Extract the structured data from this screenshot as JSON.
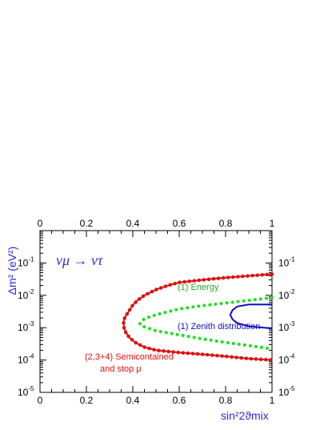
{
  "chart_data": {
    "type": "line",
    "title": "",
    "xlabel": "sin²2ϑmix",
    "ylabel": "Δm² (eV²)",
    "x_scale": "linear",
    "y_scale": "log",
    "xlim": [
      0,
      1
    ],
    "ylim": [
      1e-05,
      1
    ],
    "x_ticks": [
      "0",
      "0.2",
      "0.4",
      "0.6",
      "0.8",
      "1"
    ],
    "y_tick_exponents": [
      "-5",
      "-4",
      "-3",
      "-2",
      "-1"
    ],
    "y_tick_base": "10",
    "grid": false,
    "annotation_process": "νμ → ντ",
    "colors": {
      "energy": "#22dd22",
      "zenith": "#1010c0",
      "semicontained": "#e01010",
      "text_blue": "#2b2bd6"
    },
    "series": [
      {
        "name": "(2,3+4) Semicontained and stop μ",
        "label_lines": [
          "(2,3+4) Semicontained",
          "and stop μ"
        ],
        "style": "dotted-line",
        "x": [
          1.0,
          0.9,
          0.8,
          0.7,
          0.6,
          0.55,
          0.5,
          0.45,
          0.42,
          0.4,
          0.38,
          0.365,
          0.36,
          0.362,
          0.37,
          0.385,
          0.41,
          0.45,
          0.5,
          0.6,
          0.7,
          0.8,
          0.9,
          1.0
        ],
        "y": [
          0.045,
          0.04,
          0.035,
          0.03,
          0.025,
          0.02,
          0.015,
          0.01,
          0.007,
          0.005,
          0.003,
          0.002,
          0.0015,
          0.001,
          0.0007,
          0.0005,
          0.00035,
          0.00025,
          0.0002,
          0.00017,
          0.00015,
          0.00013,
          0.00011,
          0.0001
        ]
      },
      {
        "name": "(1) Energy",
        "style": "dots",
        "x": [
          1.0,
          0.9,
          0.8,
          0.7,
          0.6,
          0.5,
          0.45,
          0.43,
          0.45,
          0.5,
          0.6,
          0.7,
          0.8,
          0.9,
          1.0
        ],
        "y": [
          0.0085,
          0.007,
          0.0058,
          0.0048,
          0.0038,
          0.0025,
          0.0019,
          0.0013,
          0.00105,
          0.0008,
          0.0006,
          0.00045,
          0.00035,
          0.00028,
          0.00022
        ]
      },
      {
        "name": "(1) Zenith distribution",
        "style": "solid",
        "x": [
          1.0,
          0.9,
          0.85,
          0.83,
          0.82,
          0.83,
          0.85,
          0.9,
          1.0
        ],
        "y": [
          0.0052,
          0.0052,
          0.0045,
          0.0035,
          0.0025,
          0.0018,
          0.0014,
          0.0011,
          0.00095
        ]
      }
    ]
  }
}
